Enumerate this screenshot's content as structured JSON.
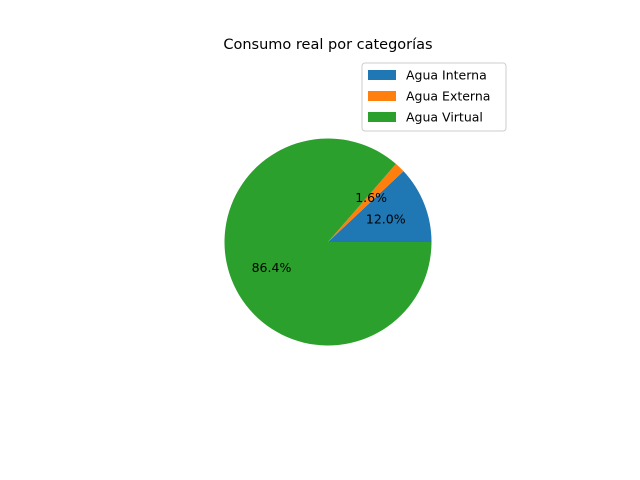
{
  "chart_data": {
    "type": "pie",
    "title": "Consumo real por categorías",
    "categories": [
      "Agua Interna",
      "Agua Externa",
      "Agua Virtual"
    ],
    "values": [
      12.0,
      1.6,
      86.4
    ],
    "labels": [
      "12.0%",
      "1.6%",
      "86.4%"
    ],
    "colors": [
      "#1f77b4",
      "#ff7f0e",
      "#2ca02c"
    ],
    "start_angle_deg": 0,
    "direction": "counterclockwise",
    "legend": {
      "placement": "upper-right",
      "entries": [
        "Agua Interna",
        "Agua Externa",
        "Agua Virtual"
      ]
    }
  }
}
